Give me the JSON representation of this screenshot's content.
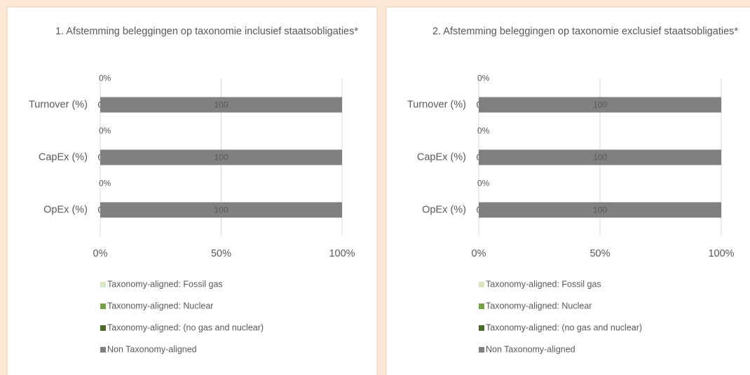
{
  "chart_data": [
    {
      "type": "bar",
      "orientation": "horizontal",
      "stacked": true,
      "title": "1. Afstemming beleggingen op taxonomie inclusief staatsobligaties*",
      "categories": [
        "Turnover (%)",
        "CapEx (%)",
        "OpEx (%)"
      ],
      "series": [
        {
          "name": "Taxonomy-aligned: Fossil gas",
          "color": "#d8e6c3",
          "values": [
            0,
            0,
            0
          ]
        },
        {
          "name": "Taxonomy-aligned: Nuclear",
          "color": "#77a044",
          "values": [
            0,
            0,
            0
          ]
        },
        {
          "name": "Taxonomy-aligned: (no gas and nuclear)",
          "color": "#4c6a2b",
          "values": [
            0,
            0,
            0
          ],
          "value_labels": [
            "0%",
            "0%",
            "0%"
          ]
        },
        {
          "name": "Non Taxonomy-aligned",
          "color": "#808080",
          "values": [
            100,
            100,
            100
          ]
        }
      ],
      "xlim": [
        0,
        100
      ],
      "xticks": [
        {
          "value": 0,
          "label": "0%"
        },
        {
          "value": 50,
          "label": "50%"
        },
        {
          "value": 100,
          "label": "100%"
        }
      ],
      "grid": true,
      "legend": "bottom"
    },
    {
      "type": "bar",
      "orientation": "horizontal",
      "stacked": true,
      "title": "2. Afstemming beleggingen op taxonomie exclusief staatsobligaties*",
      "categories": [
        "Turnover (%)",
        "CapEx (%)",
        "OpEx (%)"
      ],
      "series": [
        {
          "name": "Taxonomy-aligned: Fossil gas",
          "color": "#d8e6c3",
          "values": [
            0,
            0,
            0
          ]
        },
        {
          "name": "Taxonomy-aligned: Nuclear",
          "color": "#77a044",
          "values": [
            0,
            0,
            0
          ]
        },
        {
          "name": "Taxonomy-aligned: (no gas and nuclear)",
          "color": "#4c6a2b",
          "values": [
            0,
            0,
            0
          ],
          "value_labels": [
            "0%",
            "0%",
            "0%"
          ]
        },
        {
          "name": "Non Taxonomy-aligned",
          "color": "#808080",
          "values": [
            100,
            100,
            100
          ]
        }
      ],
      "xlim": [
        0,
        100
      ],
      "xticks": [
        {
          "value": 0,
          "label": "0%"
        },
        {
          "value": 50,
          "label": "50%"
        },
        {
          "value": 100,
          "label": "100%"
        }
      ],
      "grid": true,
      "legend": "bottom"
    }
  ]
}
